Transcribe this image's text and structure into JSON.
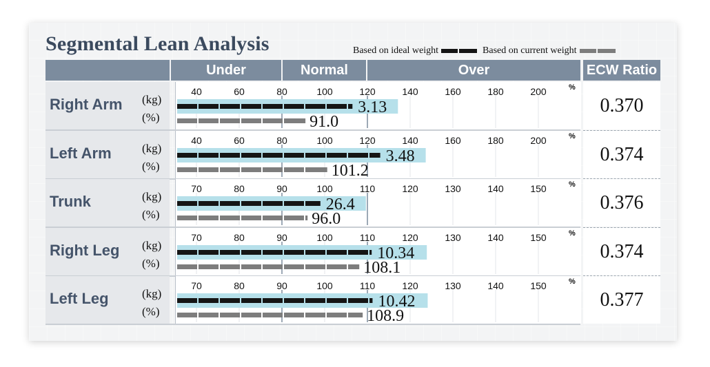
{
  "title": "Segmental Lean Analysis",
  "legend": {
    "ideal": "Based on ideal weight",
    "current": "Based on current weight"
  },
  "headers": {
    "under": "Under",
    "normal": "Normal",
    "over": "Over",
    "ecw": "ECW Ratio"
  },
  "units": {
    "kg": "(kg)",
    "pct": "(%)",
    "pct_symbol": "%"
  },
  "colors": {
    "header_bg": "#7c8c9e",
    "row_label_text": "#45546a",
    "highlight": "#b6e0ea",
    "ideal_bar": "#151515",
    "current_bar": "#7d7d7d"
  },
  "chart_data": {
    "type": "bar",
    "title": "Segmental Lean Analysis",
    "series": [
      {
        "name": "Based on ideal weight",
        "key": "kg"
      },
      {
        "name": "Based on current weight",
        "key": "pct"
      }
    ],
    "rows": [
      {
        "name": "Right Arm",
        "ticks": [
          40,
          60,
          80,
          100,
          120,
          140,
          160,
          180,
          200
        ],
        "ideal_pct": 113,
        "kg": "3.13",
        "pct": "91.0",
        "pct_value": 91.0,
        "ecw": "0.370"
      },
      {
        "name": "Left Arm",
        "ticks": [
          40,
          60,
          80,
          100,
          120,
          140,
          160,
          180,
          200
        ],
        "ideal_pct": 126,
        "kg": "3.48",
        "pct": "101.2",
        "pct_value": 101.2,
        "ecw": "0.374"
      },
      {
        "name": "Trunk",
        "ticks": [
          70,
          80,
          90,
          100,
          110,
          120,
          130,
          140,
          150
        ],
        "ideal_pct": 99,
        "kg": "26.4",
        "pct": "96.0",
        "pct_value": 96.0,
        "ecw": "0.376"
      },
      {
        "name": "Right Leg",
        "ticks": [
          70,
          80,
          90,
          100,
          110,
          120,
          130,
          140,
          150
        ],
        "ideal_pct": 111,
        "kg": "10.34",
        "pct": "108.1",
        "pct_value": 108.1,
        "ecw": "0.374"
      },
      {
        "name": "Left Leg",
        "ticks": [
          70,
          80,
          90,
          100,
          110,
          120,
          130,
          140,
          150
        ],
        "ideal_pct": 111.2,
        "kg": "10.42",
        "pct": "108.9",
        "pct_value": 108.9,
        "ecw": "0.377"
      }
    ]
  }
}
